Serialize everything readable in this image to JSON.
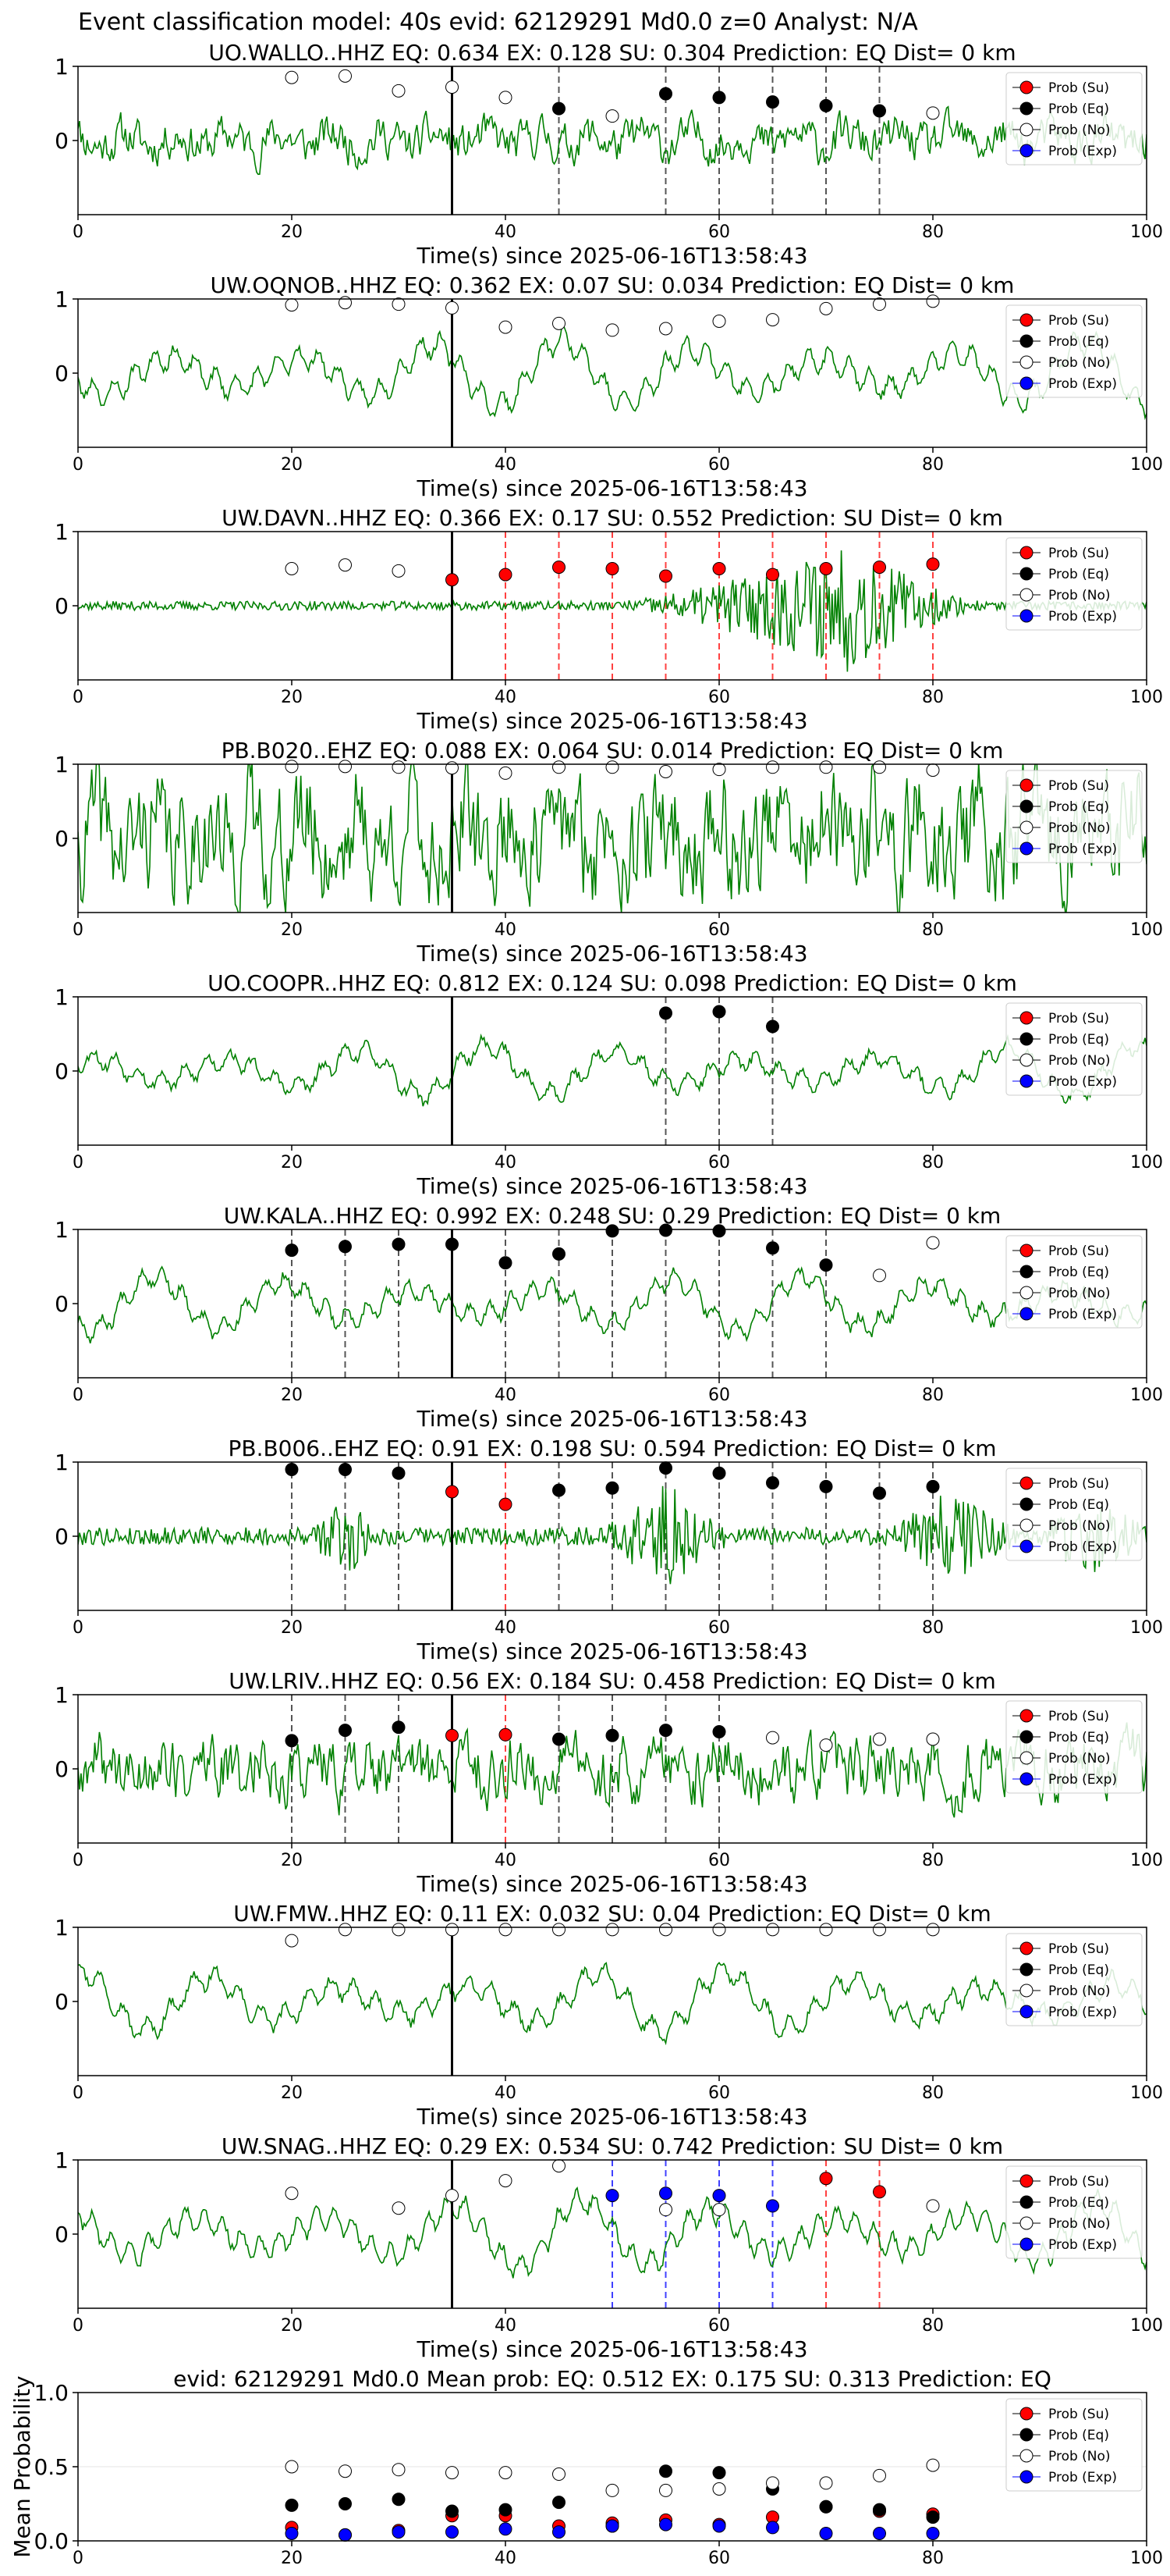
{
  "figure": {
    "suptitle": "Event classification model: 40s evid: 62129291 Md0.0 z=0 Analyst: N/A",
    "xlabel": "Time(s) since 2025-06-16T13:58:43",
    "legend_labels": [
      "Prob (Su)",
      "Prob (Eq)",
      "Prob (No)",
      "Prob (Exp)"
    ],
    "colors": {
      "Su": "#ff0000",
      "Eq": "#000000",
      "No": "#ffffff",
      "Exp": "#0000ff",
      "trace": "#008000"
    }
  },
  "chart_data": [
    {
      "type": "line",
      "title": "UO.WALLO..HHZ   EQ: 0.634  EX: 0.128  SU: 0.304   Prediction: EQ    Dist= 0 km",
      "xlim": [
        0,
        100
      ],
      "ylim": [
        -1,
        1
      ],
      "xticks": [
        0,
        20,
        40,
        60,
        80,
        100
      ],
      "yticks": [
        0,
        1
      ],
      "marker_line_x": 35,
      "trace": {
        "amplitude": 0.22,
        "seed": 11,
        "style": "noise"
      },
      "points": [
        [
          20,
          0.85,
          "No"
        ],
        [
          25,
          0.87,
          "No"
        ],
        [
          30,
          0.67,
          "No"
        ],
        [
          35,
          0.72,
          "No"
        ],
        [
          40,
          0.58,
          "No"
        ],
        [
          45,
          0.43,
          "Eq"
        ],
        [
          50,
          0.33,
          "No"
        ],
        [
          55,
          0.63,
          "Eq"
        ],
        [
          60,
          0.58,
          "Eq"
        ],
        [
          65,
          0.52,
          "Eq"
        ],
        [
          70,
          0.47,
          "Eq"
        ],
        [
          75,
          0.4,
          "Eq"
        ],
        [
          80,
          0.37,
          "No"
        ]
      ]
    },
    {
      "type": "line",
      "title": "UW.OQNOB..HHZ   EQ: 0.362  EX: 0.07  SU: 0.034   Prediction: EQ    Dist= 0 km",
      "xlim": [
        0,
        100
      ],
      "ylim": [
        -1,
        1
      ],
      "xticks": [
        0,
        20,
        40,
        60,
        80,
        100
      ],
      "yticks": [
        0,
        1
      ],
      "marker_line_x": 35,
      "trace": {
        "amplitude": 0.6,
        "seed": 23,
        "style": "wave"
      },
      "points": [
        [
          20,
          0.92,
          "No"
        ],
        [
          25,
          0.95,
          "No"
        ],
        [
          30,
          0.93,
          "No"
        ],
        [
          35,
          0.88,
          "No"
        ],
        [
          40,
          0.62,
          "No"
        ],
        [
          45,
          0.67,
          "No"
        ],
        [
          50,
          0.58,
          "No"
        ],
        [
          55,
          0.6,
          "No"
        ],
        [
          60,
          0.7,
          "No"
        ],
        [
          65,
          0.72,
          "No"
        ],
        [
          70,
          0.87,
          "No"
        ],
        [
          75,
          0.93,
          "No"
        ],
        [
          80,
          0.97,
          "No"
        ]
      ]
    },
    {
      "type": "line",
      "title": "UW.DAVN..HHZ   EQ: 0.366  EX: 0.17  SU: 0.552   Prediction: SU    Dist= 0 km",
      "xlim": [
        0,
        100
      ],
      "ylim": [
        -1,
        1
      ],
      "xticks": [
        0,
        20,
        40,
        60,
        80,
        100
      ],
      "yticks": [
        0,
        1
      ],
      "marker_line_x": 35,
      "trace": {
        "amplitude": 0.06,
        "seed": 37,
        "style": "burst",
        "burst_start": 50,
        "burst_peak": 72,
        "burst_end": 85,
        "burst_amp": 0.85
      },
      "points": [
        [
          20,
          0.5,
          "No"
        ],
        [
          25,
          0.55,
          "No"
        ],
        [
          30,
          0.47,
          "No"
        ],
        [
          35,
          0.35,
          "Su"
        ],
        [
          40,
          0.42,
          "Su"
        ],
        [
          45,
          0.52,
          "Su"
        ],
        [
          50,
          0.5,
          "Su"
        ],
        [
          55,
          0.4,
          "Su"
        ],
        [
          60,
          0.5,
          "Su"
        ],
        [
          65,
          0.42,
          "Su"
        ],
        [
          70,
          0.5,
          "Su"
        ],
        [
          75,
          0.52,
          "Su"
        ],
        [
          80,
          0.56,
          "Su"
        ]
      ]
    },
    {
      "type": "line",
      "title": "PB.B020..EHZ   EQ: 0.088  EX: 0.064  SU: 0.014   Prediction: EQ    Dist= 0 km",
      "xlim": [
        0,
        100
      ],
      "ylim": [
        -1,
        1
      ],
      "xticks": [
        0,
        20,
        40,
        60,
        80,
        100
      ],
      "yticks": [
        0,
        1
      ],
      "marker_line_x": 35,
      "trace": {
        "amplitude": 0.65,
        "seed": 41,
        "style": "noise"
      },
      "points": [
        [
          20,
          0.97,
          "No"
        ],
        [
          25,
          0.97,
          "No"
        ],
        [
          30,
          0.96,
          "No"
        ],
        [
          35,
          0.95,
          "No"
        ],
        [
          40,
          0.88,
          "No"
        ],
        [
          45,
          0.96,
          "No"
        ],
        [
          50,
          0.96,
          "No"
        ],
        [
          55,
          0.9,
          "No"
        ],
        [
          60,
          0.93,
          "No"
        ],
        [
          65,
          0.96,
          "No"
        ],
        [
          70,
          0.96,
          "No"
        ],
        [
          75,
          0.96,
          "No"
        ],
        [
          80,
          0.92,
          "No"
        ]
      ]
    },
    {
      "type": "line",
      "title": "UO.COOPR..HHZ   EQ: 0.812  EX: 0.124  SU: 0.098   Prediction: EQ    Dist= 0 km",
      "xlim": [
        0,
        100
      ],
      "ylim": [
        -1,
        1
      ],
      "xticks": [
        0,
        20,
        40,
        60,
        80,
        100
      ],
      "yticks": [
        0,
        1
      ],
      "marker_line_x": 35,
      "trace": {
        "amplitude": 0.45,
        "seed": 53,
        "style": "wave"
      },
      "points": [
        [
          55,
          0.78,
          "Eq"
        ],
        [
          60,
          0.8,
          "Eq"
        ],
        [
          65,
          0.6,
          "Eq"
        ]
      ]
    },
    {
      "type": "line",
      "title": "UW.KALA..HHZ   EQ: 0.992  EX: 0.248  SU: 0.29   Prediction: EQ    Dist= 0 km",
      "xlim": [
        0,
        100
      ],
      "ylim": [
        -1,
        1
      ],
      "xticks": [
        0,
        20,
        40,
        60,
        80,
        100
      ],
      "yticks": [
        0,
        1
      ],
      "marker_line_x": 35,
      "trace": {
        "amplitude": 0.5,
        "seed": 67,
        "style": "wave"
      },
      "points": [
        [
          20,
          0.72,
          "Eq"
        ],
        [
          25,
          0.77,
          "Eq"
        ],
        [
          30,
          0.8,
          "Eq"
        ],
        [
          35,
          0.8,
          "Eq"
        ],
        [
          40,
          0.55,
          "Eq"
        ],
        [
          45,
          0.67,
          "Eq"
        ],
        [
          50,
          0.98,
          "Eq"
        ],
        [
          55,
          0.99,
          "Eq"
        ],
        [
          60,
          0.98,
          "Eq"
        ],
        [
          65,
          0.75,
          "Eq"
        ],
        [
          70,
          0.52,
          "Eq"
        ],
        [
          75,
          0.38,
          "No"
        ],
        [
          80,
          0.82,
          "No"
        ]
      ]
    },
    {
      "type": "line",
      "title": "PB.B006..EHZ   EQ: 0.91  EX: 0.198  SU: 0.594   Prediction: EQ    Dist= 0 km",
      "xlim": [
        0,
        100
      ],
      "ylim": [
        -1,
        1
      ],
      "xticks": [
        0,
        20,
        40,
        60,
        80,
        100
      ],
      "yticks": [
        0,
        1
      ],
      "marker_line_x": 35,
      "trace": {
        "amplitude": 0.12,
        "seed": 79,
        "style": "bursts2"
      },
      "points": [
        [
          20,
          0.9,
          "Eq"
        ],
        [
          25,
          0.9,
          "Eq"
        ],
        [
          30,
          0.85,
          "Eq"
        ],
        [
          35,
          0.6,
          "Su"
        ],
        [
          40,
          0.43,
          "Su"
        ],
        [
          45,
          0.62,
          "Eq"
        ],
        [
          50,
          0.65,
          "Eq"
        ],
        [
          55,
          0.92,
          "Eq"
        ],
        [
          60,
          0.85,
          "Eq"
        ],
        [
          65,
          0.72,
          "Eq"
        ],
        [
          70,
          0.67,
          "Eq"
        ],
        [
          75,
          0.58,
          "Eq"
        ],
        [
          80,
          0.67,
          "Eq"
        ]
      ]
    },
    {
      "type": "line",
      "title": "UW.LRIV..HHZ   EQ: 0.56  EX: 0.184  SU: 0.458   Prediction: EQ    Dist= 0 km",
      "xlim": [
        0,
        100
      ],
      "ylim": [
        -1,
        1
      ],
      "xticks": [
        0,
        20,
        40,
        60,
        80,
        100
      ],
      "yticks": [
        0,
        1
      ],
      "marker_line_x": 35,
      "trace": {
        "amplitude": 0.35,
        "seed": 89,
        "style": "noise"
      },
      "points": [
        [
          20,
          0.38,
          "Eq"
        ],
        [
          25,
          0.52,
          "Eq"
        ],
        [
          30,
          0.56,
          "Eq"
        ],
        [
          35,
          0.45,
          "Su"
        ],
        [
          40,
          0.46,
          "Su"
        ],
        [
          45,
          0.4,
          "Eq"
        ],
        [
          50,
          0.45,
          "Eq"
        ],
        [
          55,
          0.52,
          "Eq"
        ],
        [
          60,
          0.5,
          "Eq"
        ],
        [
          65,
          0.42,
          "No"
        ],
        [
          70,
          0.32,
          "No"
        ],
        [
          75,
          0.4,
          "No"
        ],
        [
          80,
          0.4,
          "No"
        ]
      ]
    },
    {
      "type": "line",
      "title": "UW.FMW..HHZ   EQ: 0.11  EX: 0.032  SU: 0.04   Prediction: EQ    Dist= 0 km",
      "xlim": [
        0,
        100
      ],
      "ylim": [
        -1,
        1
      ],
      "xticks": [
        0,
        20,
        40,
        60,
        80,
        100
      ],
      "yticks": [
        0,
        1
      ],
      "marker_line_x": 35,
      "trace": {
        "amplitude": 0.55,
        "seed": 97,
        "style": "wave"
      },
      "points": [
        [
          20,
          0.82,
          "No"
        ],
        [
          25,
          0.97,
          "No"
        ],
        [
          30,
          0.97,
          "No"
        ],
        [
          35,
          0.97,
          "No"
        ],
        [
          40,
          0.97,
          "No"
        ],
        [
          45,
          0.97,
          "No"
        ],
        [
          50,
          0.97,
          "No"
        ],
        [
          55,
          0.97,
          "No"
        ],
        [
          60,
          0.97,
          "No"
        ],
        [
          65,
          0.97,
          "No"
        ],
        [
          70,
          0.97,
          "No"
        ],
        [
          75,
          0.97,
          "No"
        ],
        [
          80,
          0.97,
          "No"
        ]
      ]
    },
    {
      "type": "line",
      "title": "UW.SNAG..HHZ   EQ: 0.29  EX: 0.534  SU: 0.742   Prediction: SU    Dist= 0 km",
      "xlim": [
        0,
        100
      ],
      "ylim": [
        -1,
        1
      ],
      "xticks": [
        0,
        20,
        40,
        60,
        80,
        100
      ],
      "yticks": [
        0,
        1
      ],
      "marker_line_x": 35,
      "trace": {
        "amplitude": 0.6,
        "seed": 103,
        "style": "wave"
      },
      "points": [
        [
          20,
          0.55,
          "No"
        ],
        [
          30,
          0.35,
          "No"
        ],
        [
          35,
          0.52,
          "No"
        ],
        [
          40,
          0.72,
          "No"
        ],
        [
          45,
          0.92,
          "No"
        ],
        [
          50,
          0.52,
          "Exp"
        ],
        [
          55,
          0.55,
          "Exp"
        ],
        [
          55,
          0.33,
          "No"
        ],
        [
          60,
          0.52,
          "Exp"
        ],
        [
          60,
          0.33,
          "No"
        ],
        [
          65,
          0.38,
          "Exp"
        ],
        [
          70,
          0.75,
          "Su"
        ],
        [
          75,
          0.57,
          "Su"
        ],
        [
          80,
          0.38,
          "No"
        ]
      ]
    },
    {
      "type": "scatter",
      "title": "evid: 62129291  Md0.0   Mean prob:   EQ: 0.512  EX: 0.175  SU: 0.313   Prediction: EQ",
      "ylabel": "Mean Probability",
      "xlim": [
        0,
        100
      ],
      "ylim": [
        0,
        1
      ],
      "xticks": [
        0,
        20,
        40,
        60,
        80,
        100
      ],
      "yticks": [
        0.0,
        0.5,
        1.0
      ],
      "series": [
        {
          "name": "Prob (Su)",
          "key": "Su",
          "x": [
            20,
            25,
            30,
            35,
            40,
            45,
            50,
            55,
            60,
            65,
            70,
            75,
            80
          ],
          "y": [
            0.09,
            0.04,
            0.07,
            0.17,
            0.17,
            0.1,
            0.12,
            0.14,
            0.11,
            0.16,
            0.23,
            0.2,
            0.18
          ]
        },
        {
          "name": "Prob (Eq)",
          "key": "Eq",
          "x": [
            20,
            25,
            30,
            35,
            40,
            45,
            50,
            55,
            60,
            65,
            70,
            75,
            80
          ],
          "y": [
            0.24,
            0.25,
            0.28,
            0.2,
            0.21,
            0.26,
            0.1,
            0.47,
            0.46,
            0.35,
            0.23,
            0.21,
            0.16
          ]
        },
        {
          "name": "Prob (No)",
          "key": "No",
          "x": [
            20,
            25,
            30,
            35,
            40,
            45,
            50,
            55,
            60,
            65,
            70,
            75,
            80
          ],
          "y": [
            0.5,
            0.47,
            0.48,
            0.46,
            0.46,
            0.45,
            0.34,
            0.34,
            0.35,
            0.39,
            0.39,
            0.44,
            0.51
          ]
        },
        {
          "name": "Prob (Exp)",
          "key": "Exp",
          "x": [
            20,
            25,
            30,
            35,
            40,
            45,
            50,
            55,
            60,
            65,
            70,
            75,
            80
          ],
          "y": [
            0.05,
            0.04,
            0.06,
            0.06,
            0.08,
            0.06,
            0.1,
            0.11,
            0.1,
            0.09,
            0.05,
            0.05,
            0.05
          ]
        }
      ]
    }
  ]
}
